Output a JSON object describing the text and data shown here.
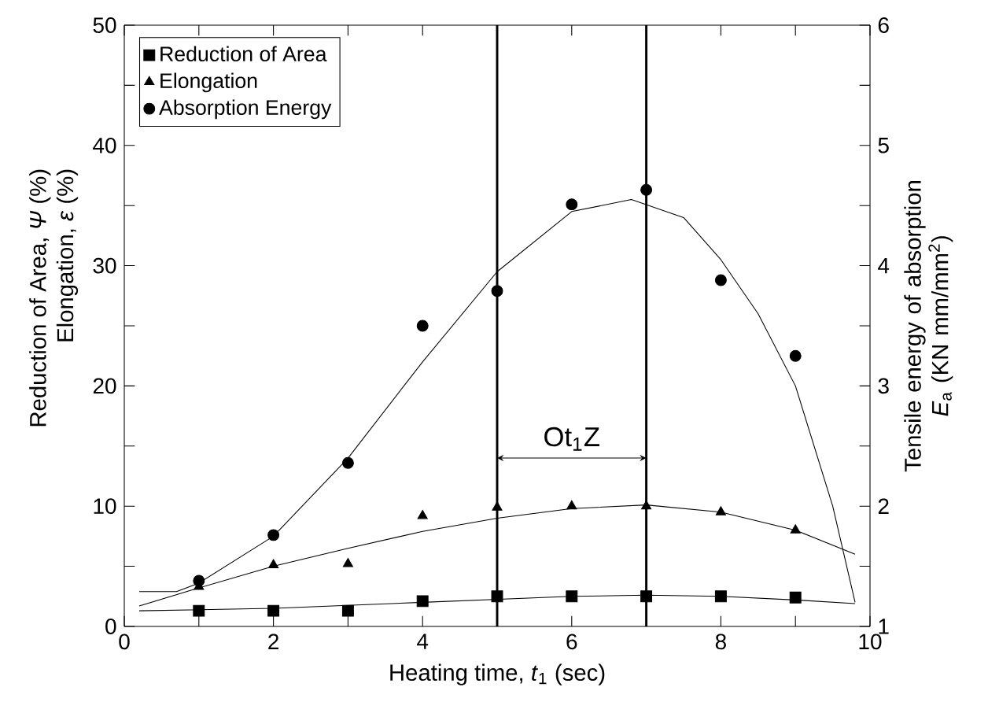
{
  "chart_data": {
    "type": "scatter",
    "xlabel": "Heating time, *t*$_{1}$ (sec)",
    "ylabel": "Reduction of Area, *Ψ* (%) Elongation, *ε* (%)",
    "y2label": "Tensile energy of absorption *E*$_{a}$ (KN mm/mm$^{2}$)",
    "xlim": [
      0,
      10
    ],
    "ylim": [
      0,
      50
    ],
    "y2lim": [
      1,
      6
    ],
    "xticks": [
      0,
      {
        "value": 1,
        "label": null
      },
      2,
      {
        "value": 3,
        "label": null
      },
      4,
      {
        "value": 5,
        "label": null
      },
      6,
      {
        "value": 7,
        "label": null
      },
      8,
      {
        "value": 9,
        "label": null
      },
      10
    ],
    "yticks": [
      0,
      {
        "value": 5,
        "label": null
      },
      10,
      {
        "value": 15,
        "label": null
      },
      20,
      {
        "value": 25,
        "label": null
      },
      30,
      {
        "value": 35,
        "label": null
      },
      40,
      {
        "value": 45,
        "label": null
      },
      50
    ],
    "y2ticks": [
      1,
      {
        "value": 1.5,
        "label": null
      },
      2,
      {
        "value": 2.5,
        "label": null
      },
      3,
      {
        "value": 3.5,
        "label": null
      },
      4,
      {
        "value": 4.5,
        "label": null
      },
      5,
      {
        "value": 5.5,
        "label": null
      },
      6
    ],
    "legend": "top left",
    "series": [
      {
        "name": "Reduction of Area",
        "type": "scatter",
        "marker": "square",
        "color": "#000000",
        "x": [
          1,
          2,
          3,
          4,
          5,
          6,
          7,
          8,
          9
        ],
        "values": [
          1.3,
          1.3,
          1.3,
          2.1,
          2.5,
          2.5,
          2.5,
          2.5,
          2.4
        ]
      },
      {
        "name": "Elongation",
        "type": "scatter",
        "marker": "triangle",
        "color": "#000000",
        "x": [
          1,
          2,
          3,
          4,
          5,
          6,
          7,
          8,
          9
        ],
        "values": [
          3.3,
          5.1,
          5.2,
          9.2,
          9.9,
          10.0,
          10.0,
          9.5,
          8.0
        ]
      },
      {
        "name": "Absorption Energy",
        "type": "scatter",
        "marker": "circle",
        "color": "#000000",
        "axis": "y2",
        "x": [
          1,
          2,
          3,
          4,
          5,
          6,
          7,
          8,
          9
        ],
        "values": [
          1.38,
          1.76,
          2.36,
          3.5,
          3.79,
          4.51,
          4.63,
          3.88,
          3.25
        ]
      },
      {
        "type": "line",
        "marker": "none",
        "color": "#000000",
        "x": [
          0.2,
          2,
          4,
          6,
          7,
          8,
          9,
          9.8
        ],
        "values": [
          1.3,
          1.5,
          2.0,
          2.5,
          2.6,
          2.5,
          2.2,
          1.9
        ]
      },
      {
        "type": "line",
        "marker": "none",
        "color": "#000000",
        "x": [
          0.2,
          1,
          2,
          3,
          4,
          5,
          6,
          7,
          8,
          9,
          9.8
        ],
        "values": [
          1.7,
          3.2,
          5.0,
          6.5,
          7.9,
          9.0,
          9.8,
          10.1,
          9.5,
          8.0,
          6.0
        ]
      },
      {
        "type": "line",
        "marker": "none",
        "color": "#000000",
        "axis": "y2",
        "x": [
          0.2,
          0.7,
          1,
          2,
          3,
          4,
          5,
          6,
          6.8,
          7.5,
          8,
          8.5,
          9,
          9.5,
          9.8
        ],
        "values": [
          1.29,
          1.29,
          1.36,
          1.75,
          2.4,
          3.2,
          3.95,
          4.45,
          4.55,
          4.4,
          4.05,
          3.6,
          3.0,
          2.0,
          1.2
        ]
      }
    ],
    "ref_lines": [
      {
        "axis": "x",
        "value": 5
      },
      {
        "axis": "x",
        "value": 7
      }
    ],
    "annotations": [
      {
        "text": "Ot$_{1}$Z",
        "x": 7,
        "y": 14
      }
    ]
  }
}
